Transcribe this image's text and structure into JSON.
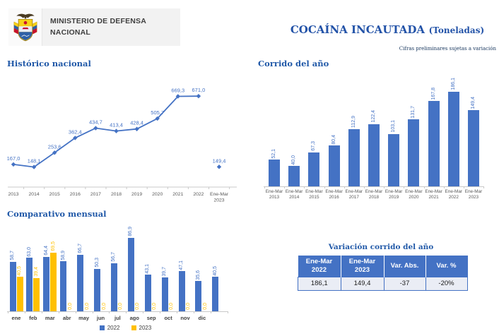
{
  "header": {
    "ministry_line1": "MINISTERIO DE DEFENSA",
    "ministry_line2": "NACIONAL",
    "title_main": "COCAÍNA INCAUTADA",
    "title_unit": "(Toneladas)",
    "disclaimer": "Cifras preliminares sujetas a variación"
  },
  "colors": {
    "series_2022_blue": "#4472C4",
    "series_2023_orange": "#FFC000",
    "heading_blue": "#2159A8",
    "title_blue": "#2353A8",
    "table_header_bg": "#4472C4",
    "table_row_bg": "#EAEDF5",
    "axis_gray": "#C9C9C9",
    "axis_label_gray": "#595959"
  },
  "chart_data": [
    {
      "id": "historico_nacional",
      "type": "line",
      "title": "Histórico nacional",
      "categories": [
        "2013",
        "2014",
        "2015",
        "2016",
        "2017",
        "2018",
        "2019",
        "2020",
        "2021",
        "2022",
        "Ene-Mar|2023"
      ],
      "series": [
        {
          "name": "Histórico anual",
          "color": "#4472C4",
          "values": [
            167.0,
            148.1,
            253.6,
            362.4,
            434.7,
            413.4,
            428.4,
            505.7,
            669.3,
            671.0,
            null
          ],
          "labels": [
            "167,0",
            "148,1",
            "253,6",
            "362,4",
            "434,7",
            "413,4",
            "428,4",
            "505,7",
            "669,3",
            "671,0",
            null
          ]
        },
        {
          "name": "Corrido 2023 (punto aislado)",
          "color": "#4472C4",
          "values": [
            null,
            null,
            null,
            null,
            null,
            null,
            null,
            null,
            null,
            null,
            149.4
          ],
          "labels": [
            null,
            null,
            null,
            null,
            null,
            null,
            null,
            null,
            null,
            null,
            "149,4"
          ]
        }
      ],
      "marker": "diamond",
      "data_labels": true,
      "grid": false,
      "y_axis_visible": false,
      "ylim": [
        0,
        750
      ]
    },
    {
      "id": "corrido_del_ano",
      "type": "bar",
      "title": "Corrido del año",
      "categories": [
        "Ene-Mar|2013",
        "Ene-Mar|2014",
        "Ene-Mar|2015",
        "Ene-Mar|2016",
        "Ene-Mar|2017",
        "Ene-Mar|2018",
        "Ene-Mar|2019",
        "Ene-Mar|2020",
        "Ene-Mar|2021",
        "Ene-Mar|2022",
        "Ene-Mar|2023"
      ],
      "values": [
        52.1,
        40.0,
        67.3,
        80.4,
        112.9,
        122.4,
        103.1,
        131.7,
        167.8,
        186.1,
        149.4
      ],
      "labels": [
        "52,1",
        "40,0",
        "67,3",
        "80,4",
        "112,9",
        "122,4",
        "103,1",
        "131,7",
        "167,8",
        "186,1",
        "149,4"
      ],
      "bar_color": "#4472C4",
      "label_rotation_deg": 90,
      "grid": false,
      "y_axis_visible": false,
      "ylim": [
        0,
        210
      ]
    },
    {
      "id": "comparativo_mensual",
      "type": "bar",
      "title": "Comparativo mensual",
      "categories": [
        "ene",
        "feb",
        "mar",
        "abr",
        "may",
        "jun",
        "jul",
        "ago",
        "sep",
        "oct",
        "nov",
        "dic",
        ""
      ],
      "series": [
        {
          "name": "2022",
          "color": "#4472C4",
          "values": [
            58.7,
            63.0,
            64.4,
            58.9,
            66.7,
            50.3,
            56.7,
            86.9,
            43.1,
            39.7,
            47.1,
            35.6,
            40.5
          ],
          "labels": [
            "58,7",
            "63,0",
            "64,4",
            "58,9",
            "66,7",
            "50,3",
            "56,7",
            "86,9",
            "43,1",
            "39,7",
            "47,1",
            "35,6",
            "40,5"
          ]
        },
        {
          "name": "2023",
          "color": "#FFC000",
          "values": [
            40.5,
            39.4,
            69.5,
            0,
            0,
            0,
            0,
            0,
            0,
            0,
            0,
            0,
            null
          ],
          "labels": [
            "40,5",
            "39,4",
            "69,5",
            "0,0",
            "0,0",
            "0,0",
            "0,0",
            "0,0",
            "0,0",
            "0,0",
            "0,0",
            "0,0",
            null
          ]
        }
      ],
      "legend_position": "bottom",
      "label_rotation_deg": 90,
      "grid": false,
      "y_axis_visible": false,
      "ylim": [
        0,
        100
      ]
    }
  ],
  "table": {
    "title": "Variación corrido del año",
    "headers": [
      {
        "line1": "Ene-Mar",
        "line2": "2022"
      },
      {
        "line1": "Ene-Mar",
        "line2": "2023"
      },
      {
        "line1": "Var. Abs.",
        "line2": ""
      },
      {
        "line1": "Var. %",
        "line2": ""
      }
    ],
    "rows": [
      [
        "186,1",
        "149,4",
        "-37",
        "-20%"
      ]
    ]
  }
}
